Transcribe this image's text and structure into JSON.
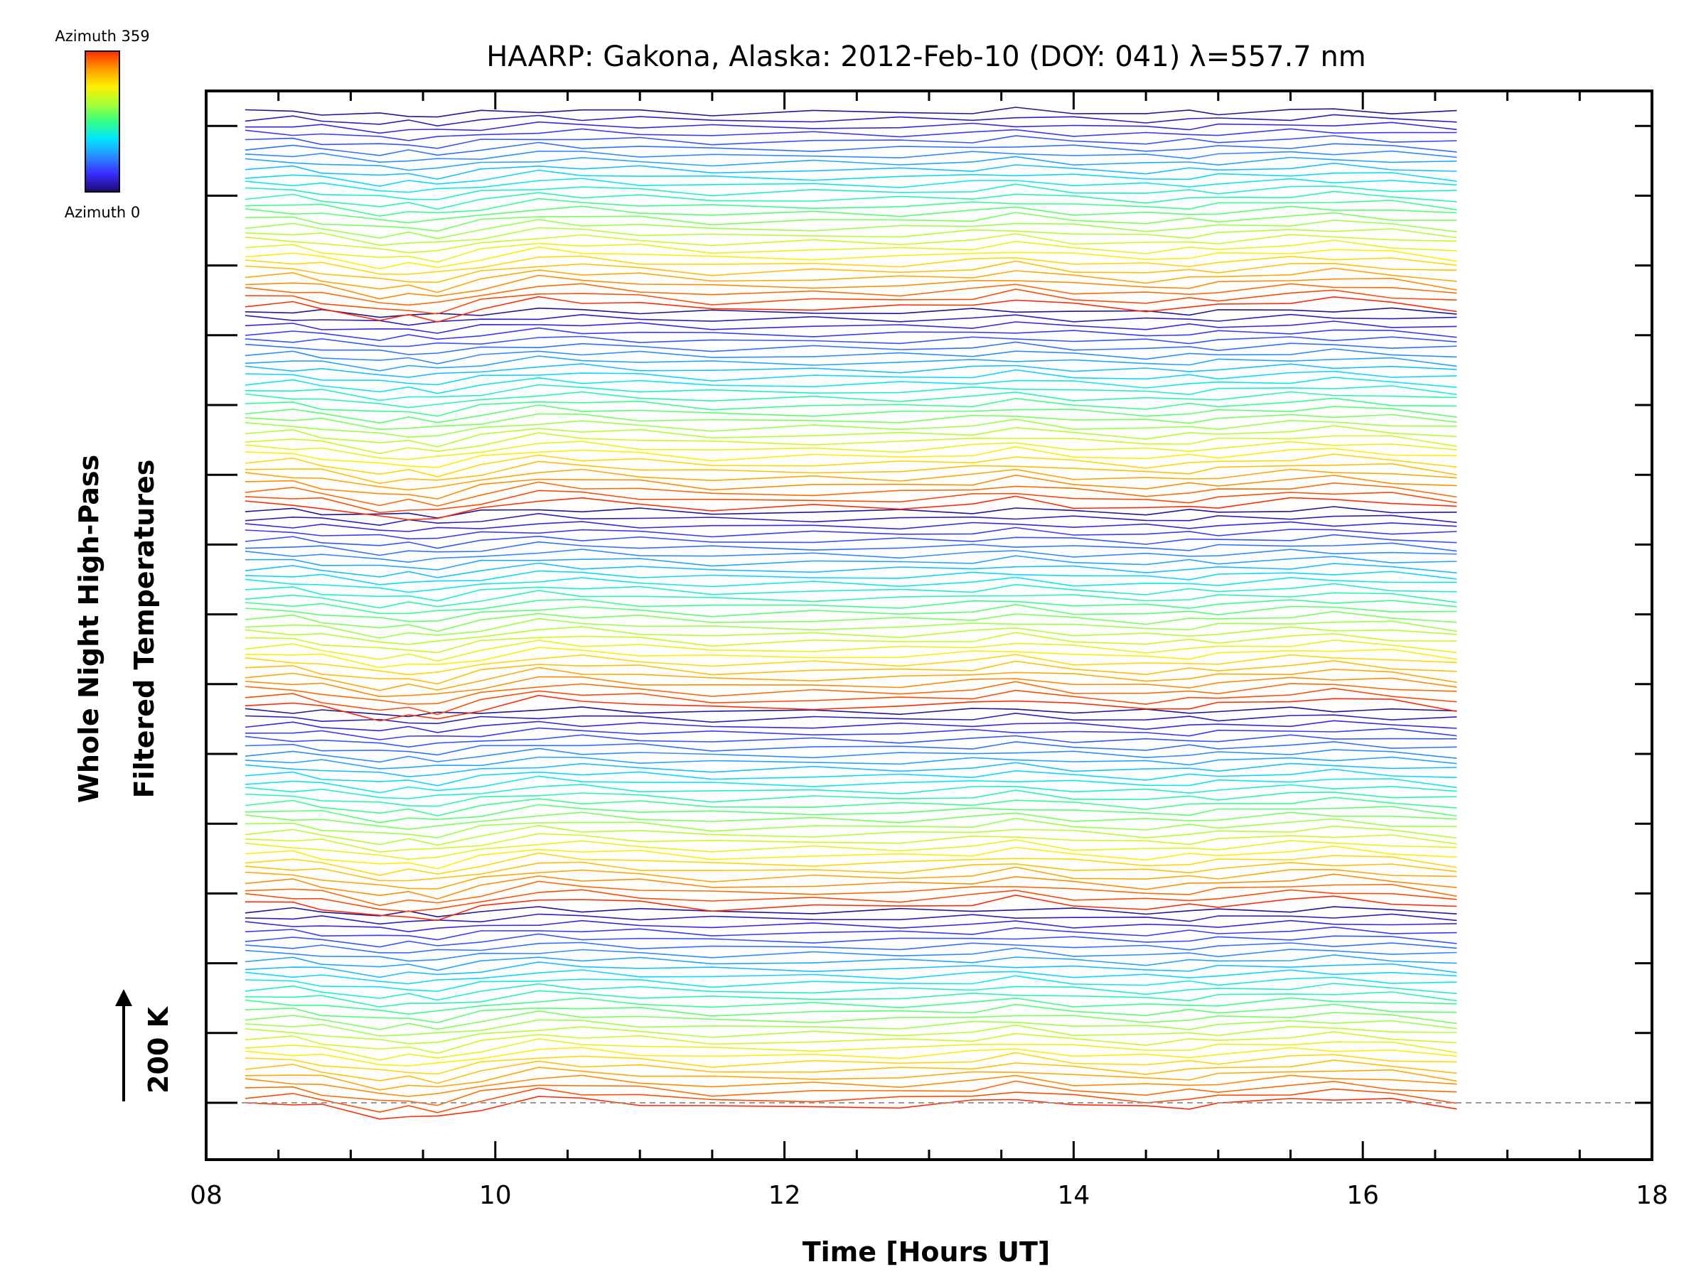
{
  "chart_data": {
    "type": "line",
    "title": "HAARP: Gakona,  Alaska: 2012-Feb-10 (DOY: 041) λ=557.7 nm",
    "xlabel": "Time [Hours UT]",
    "ylabel_line1": "Whole Night High-Pass",
    "ylabel_line2": "Filtered Temperatures",
    "scale_label": "200 K",
    "xlim": [
      8,
      18
    ],
    "x_ticks": [
      "08",
      "10",
      "12",
      "14",
      "16",
      "18"
    ],
    "grid": false,
    "colorbar": {
      "top_label": "Azimuth 359",
      "bottom_label": "Azimuth 0",
      "colors": [
        "#ff2a00",
        "#ff9a00",
        "#ffee00",
        "#aaff33",
        "#33ff88",
        "#00e5ff",
        "#2a8cff",
        "#3a2aff",
        "#1a0a6e"
      ]
    },
    "series_count": 140,
    "series_offset_step_K": 17.8,
    "x": [
      8.27,
      8.6,
      8.8,
      9.2,
      9.4,
      9.6,
      9.9,
      10.3,
      10.6,
      11.0,
      11.5,
      12.2,
      12.8,
      13.3,
      13.6,
      14.0,
      14.5,
      14.8,
      15.0,
      15.5,
      15.8,
      16.2,
      16.65
    ],
    "base_profile_K": [
      0,
      0,
      -12,
      -42,
      -38,
      -45,
      -15,
      15,
      10,
      0,
      -15,
      -10,
      -10,
      0,
      15,
      -5,
      -15,
      -10,
      -5,
      10,
      15,
      5,
      -15
    ]
  }
}
